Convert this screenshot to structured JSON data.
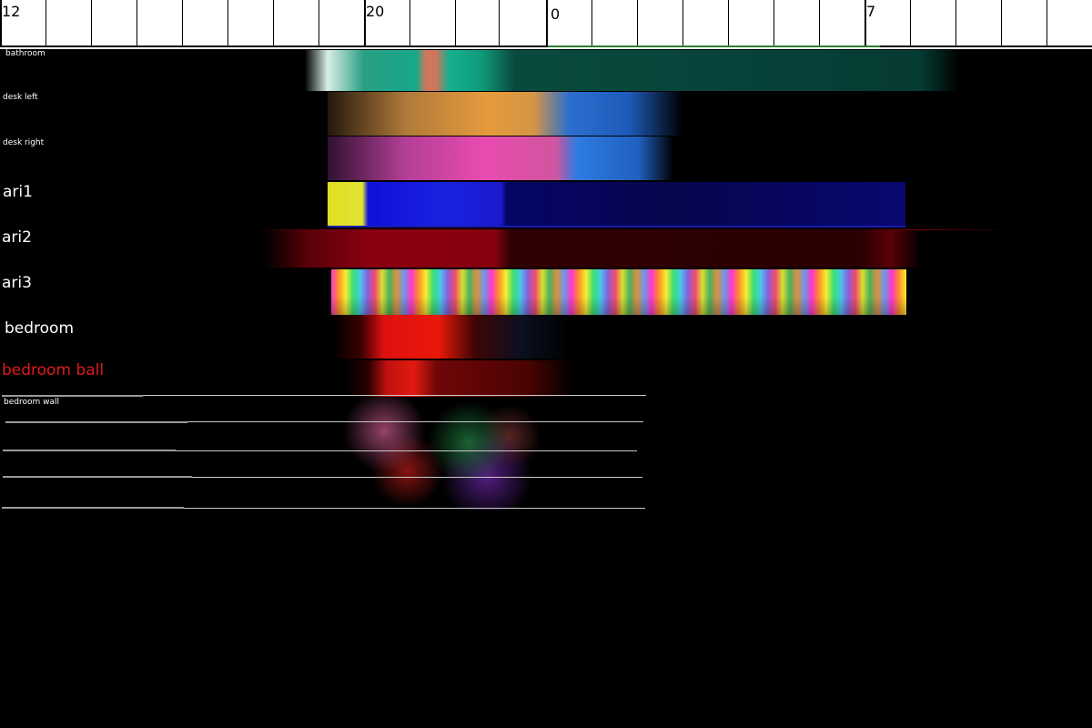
{
  "ruler": {
    "labels": [
      "12",
      "20",
      "0",
      "7"
    ]
  },
  "tracks": {
    "bathroom": "bathroom",
    "desk_left": "desk left",
    "desk_right": "desk right",
    "ari1": "ari1",
    "ari2": "ari2",
    "ari3": "ari3",
    "bedroom": "bedroom",
    "bedroom_ball": "bedroom ball",
    "bedroom_wall": "bedroom wall"
  },
  "colors": {
    "background": "#000000",
    "ruler": "#ffffff",
    "playhead": "#2e7d32",
    "bedroom_ball_label": "#e01a1a"
  }
}
